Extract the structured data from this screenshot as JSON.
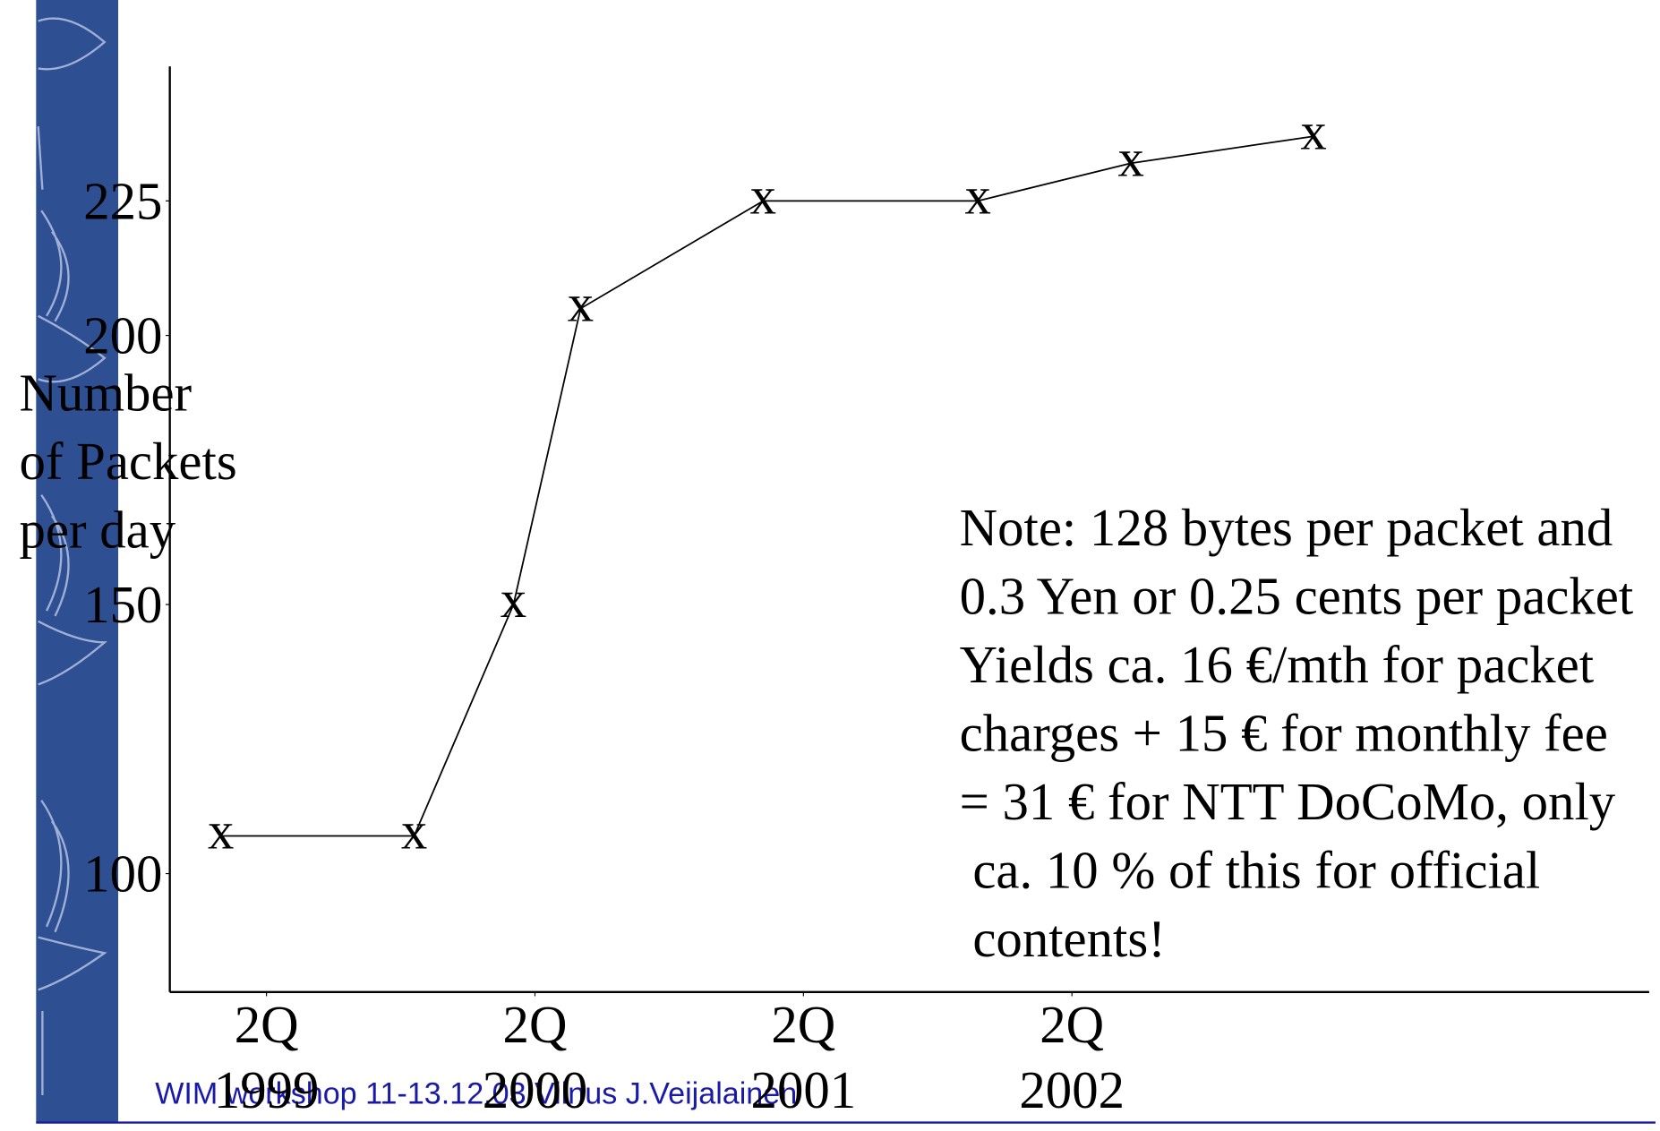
{
  "chart_data": {
    "type": "line",
    "y_label": [
      "Number",
      "of Packets",
      "per day"
    ],
    "x": [
      1999.08,
      1999.8,
      2000.17,
      2000.42,
      2001.1,
      2001.9,
      2002.47,
      2003.15
    ],
    "series": [
      {
        "marker": "x",
        "color": "#000000",
        "values": [
          107,
          107,
          150,
          205,
          225,
          225,
          232,
          237
        ]
      }
    ],
    "xlim": [
      1998.89,
      2004.4
    ],
    "ylim": [
      78,
      250
    ],
    "xticks": [
      {
        "value": 1999.25,
        "label": "2Q 1999"
      },
      {
        "value": 2000.25,
        "label": "2Q 2000"
      },
      {
        "value": 2001.25,
        "label": "2Q 2001"
      },
      {
        "value": 2002.25,
        "label": "2Q 2002"
      }
    ],
    "yticks": [
      100,
      150,
      200,
      225
    ],
    "note": [
      "Note: 128 bytes per packet and",
      "0.3 Yen or 0.25 cents per packet",
      "Yields ca. 16 €/mth for packet",
      "charges + 15 € for monthly fee",
      "= 31 € for NTT DoCoMo, only",
      " ca. 10 % of this for official",
      " contents!"
    ],
    "footer": "WIM workshop 11-13.12.03 Vilnus  J.Veijalainen"
  }
}
